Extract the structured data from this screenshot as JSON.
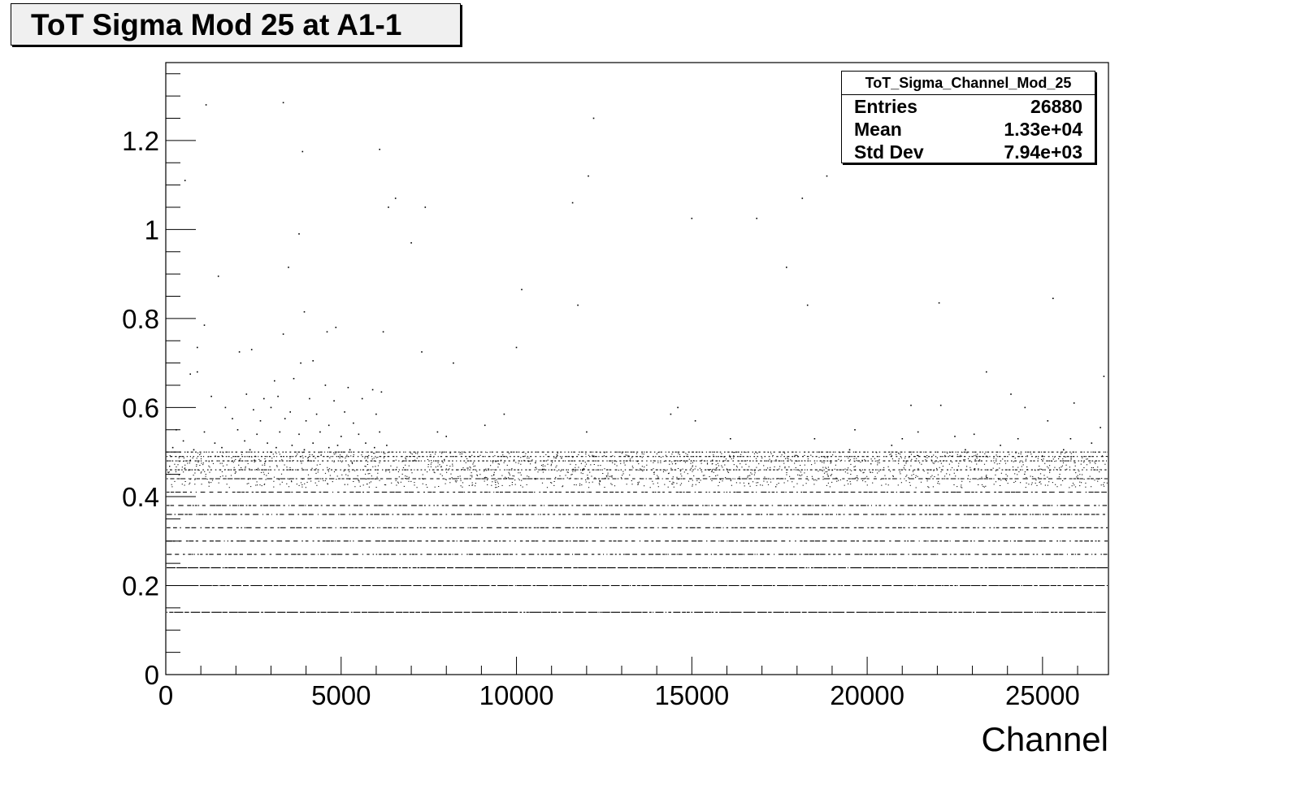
{
  "title": "ToT Sigma Mod 25 at A1-1",
  "stats": {
    "name": "ToT_Sigma_Channel_Mod_25",
    "rows": [
      {
        "label": "Entries",
        "value": "26880"
      },
      {
        "label": "Mean",
        "value": "1.33e+04"
      },
      {
        "label": "Std Dev",
        "value": "7.94e+03"
      }
    ]
  },
  "chart_data": {
    "type": "scatter",
    "title": "ToT Sigma Mod 25 at A1-1",
    "xlabel": "Channel",
    "ylabel": "",
    "xlim": [
      0,
      26880
    ],
    "ylim": [
      0,
      1.375
    ],
    "x_ticks": [
      {
        "value": 0,
        "label": "0"
      },
      {
        "value": 5000,
        "label": "5000"
      },
      {
        "value": 10000,
        "label": "10000"
      },
      {
        "value": 15000,
        "label": "15000"
      },
      {
        "value": 20000,
        "label": "20000"
      },
      {
        "value": 25000,
        "label": "25000"
      }
    ],
    "y_ticks": [
      {
        "value": 0,
        "label": "0"
      },
      {
        "value": 0.2,
        "label": "0.2"
      },
      {
        "value": 0.4,
        "label": "0.4"
      },
      {
        "value": 0.6,
        "label": "0.6"
      },
      {
        "value": 0.8,
        "label": "0.8"
      },
      {
        "value": 1.0,
        "label": "1"
      },
      {
        "value": 1.2,
        "label": "1.2"
      }
    ],
    "grid": false,
    "marker_color": "#000000",
    "entries": 26880,
    "dense_levels": [
      0.14,
      0.2,
      0.24,
      0.27,
      0.3,
      0.33,
      0.36,
      0.38,
      0.41,
      0.44,
      0.46,
      0.48,
      0.49,
      0.5
    ],
    "scattered_points": [
      [
        1150,
        1.28
      ],
      [
        3350,
        1.285
      ],
      [
        12200,
        1.25
      ],
      [
        3900,
        1.175
      ],
      [
        6100,
        1.18
      ],
      [
        12050,
        1.12
      ],
      [
        18850,
        1.12
      ],
      [
        550,
        1.11
      ],
      [
        6550,
        1.07
      ],
      [
        11600,
        1.06
      ],
      [
        18150,
        1.07
      ],
      [
        6350,
        1.05
      ],
      [
        7400,
        1.05
      ],
      [
        15000,
        1.025
      ],
      [
        16850,
        1.025
      ],
      [
        3800,
        0.99
      ],
      [
        7000,
        0.97
      ],
      [
        3500,
        0.915
      ],
      [
        17700,
        0.915
      ],
      [
        1500,
        0.895
      ],
      [
        10150,
        0.865
      ],
      [
        11750,
        0.83
      ],
      [
        18300,
        0.83
      ],
      [
        22050,
        0.835
      ],
      [
        25300,
        0.845
      ],
      [
        3950,
        0.815
      ],
      [
        4850,
        0.78
      ],
      [
        1100,
        0.785
      ],
      [
        6200,
        0.77
      ],
      [
        3350,
        0.765
      ],
      [
        4600,
        0.77
      ],
      [
        7300,
        0.725
      ],
      [
        10000,
        0.735
      ],
      [
        900,
        0.735
      ],
      [
        2100,
        0.725
      ],
      [
        2450,
        0.73
      ],
      [
        8200,
        0.7
      ],
      [
        3850,
        0.7
      ],
      [
        4200,
        0.705
      ],
      [
        23400,
        0.68
      ],
      [
        26750,
        0.67
      ],
      [
        700,
        0.675
      ],
      [
        900,
        0.68
      ],
      [
        3100,
        0.66
      ],
      [
        3650,
        0.665
      ],
      [
        4550,
        0.65
      ],
      [
        5200,
        0.645
      ],
      [
        5900,
        0.64
      ],
      [
        6150,
        0.635
      ],
      [
        24100,
        0.63
      ],
      [
        1300,
        0.625
      ],
      [
        2300,
        0.63
      ],
      [
        2800,
        0.62
      ],
      [
        3200,
        0.625
      ],
      [
        4100,
        0.62
      ],
      [
        4800,
        0.615
      ],
      [
        5600,
        0.62
      ],
      [
        21250,
        0.605
      ],
      [
        22100,
        0.605
      ],
      [
        24500,
        0.6
      ],
      [
        25900,
        0.61
      ],
      [
        14600,
        0.6
      ],
      [
        9650,
        0.585
      ],
      [
        1700,
        0.6
      ],
      [
        2500,
        0.595
      ],
      [
        3000,
        0.6
      ],
      [
        3550,
        0.59
      ],
      [
        4300,
        0.585
      ],
      [
        5100,
        0.59
      ],
      [
        6000,
        0.585
      ],
      [
        15100,
        0.57
      ],
      [
        9100,
        0.56
      ],
      [
        25150,
        0.57
      ],
      [
        14400,
        0.585
      ],
      [
        1900,
        0.575
      ],
      [
        2700,
        0.57
      ],
      [
        3400,
        0.575
      ],
      [
        4000,
        0.57
      ],
      [
        4650,
        0.56
      ],
      [
        5350,
        0.565
      ],
      [
        12000,
        0.545
      ],
      [
        19650,
        0.55
      ],
      [
        21450,
        0.545
      ],
      [
        23050,
        0.54
      ],
      [
        26650,
        0.555
      ],
      [
        7750,
        0.545
      ],
      [
        8000,
        0.535
      ],
      [
        300,
        0.55
      ],
      [
        1100,
        0.545
      ],
      [
        2050,
        0.55
      ],
      [
        2600,
        0.54
      ],
      [
        3250,
        0.545
      ],
      [
        3800,
        0.54
      ],
      [
        4400,
        0.545
      ],
      [
        5000,
        0.535
      ],
      [
        5500,
        0.54
      ],
      [
        6100,
        0.545
      ],
      [
        16100,
        0.53
      ],
      [
        18500,
        0.53
      ],
      [
        21000,
        0.53
      ],
      [
        22500,
        0.535
      ],
      [
        24300,
        0.53
      ],
      [
        25800,
        0.53
      ],
      [
        500,
        0.525
      ],
      [
        1400,
        0.52
      ],
      [
        2250,
        0.525
      ],
      [
        2900,
        0.52
      ],
      [
        3600,
        0.515
      ],
      [
        4200,
        0.52
      ],
      [
        4900,
        0.515
      ],
      [
        5700,
        0.52
      ],
      [
        6300,
        0.515
      ],
      [
        20700,
        0.515
      ],
      [
        23800,
        0.515
      ],
      [
        26400,
        0.52
      ],
      [
        200,
        0.51
      ],
      [
        800,
        0.505
      ],
      [
        1600,
        0.51
      ],
      [
        2400,
        0.505
      ],
      [
        3150,
        0.51
      ],
      [
        3950,
        0.505
      ],
      [
        4650,
        0.51
      ],
      [
        5250,
        0.505
      ],
      [
        5950,
        0.51
      ],
      [
        19500,
        0.505
      ],
      [
        22800,
        0.505
      ],
      [
        25600,
        0.505
      ]
    ]
  }
}
